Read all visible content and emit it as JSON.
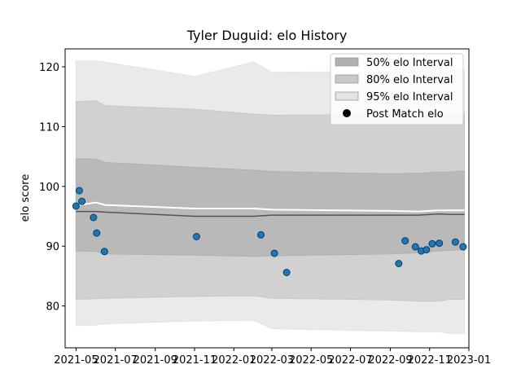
{
  "chart_data": {
    "type": "scatter",
    "title": "Tyler Duguid: elo History",
    "xlabel": "",
    "ylabel": "elo score",
    "x_ticks": [
      "2021-05",
      "2021-07",
      "2021-09",
      "2021-11",
      "2022-01",
      "2022-03",
      "2022-05",
      "2022-07",
      "2022-09",
      "2022-11",
      "2023-01"
    ],
    "y_ticks": [
      80,
      90,
      100,
      110,
      120
    ],
    "xlim": [
      "2021-04-14",
      "2023-01-01"
    ],
    "ylim": [
      73,
      123
    ],
    "grid": false,
    "legend_position": "top-right",
    "legend": [
      {
        "label": "50% elo Interval",
        "kind": "band",
        "color": "#b0b0b0"
      },
      {
        "label": "80% elo Interval",
        "kind": "band",
        "color": "#c8c8c8"
      },
      {
        "label": "95% elo Interval",
        "kind": "band",
        "color": "#e3e3e3"
      },
      {
        "label": "Post Match elo",
        "kind": "marker",
        "color": "#000000"
      }
    ],
    "colors": {
      "band50": "#b0b0b0",
      "band80": "#c8c8c8",
      "band95": "#e3e3e3",
      "median": "#555555",
      "mean": "#ffffff",
      "point": "#1f77b4",
      "point_edge": "#0b3d66"
    },
    "bands": {
      "dates": [
        "2021-05-01",
        "2021-06-01",
        "2021-06-15",
        "2021-11-01",
        "2022-02-01",
        "2022-03-01",
        "2022-09-01",
        "2022-10-15",
        "2022-11-15",
        "2022-12-01",
        "2022-12-25"
      ],
      "p95_upper": [
        121.0,
        121.0,
        120.8,
        118.4,
        120.8,
        119.1,
        119.2,
        119.2,
        119.3,
        119.4,
        119.4
      ],
      "p95_lower": [
        76.7,
        76.8,
        77.0,
        77.5,
        77.6,
        76.2,
        75.8,
        75.7,
        75.7,
        75.4,
        75.4
      ],
      "p80_upper": [
        114.2,
        114.3,
        113.5,
        112.9,
        112.1,
        111.9,
        112.0,
        112.0,
        112.2,
        112.2,
        112.2
      ],
      "p80_lower": [
        81.1,
        81.2,
        81.3,
        81.6,
        81.7,
        81.3,
        81.0,
        80.8,
        80.8,
        81.1,
        81.1
      ],
      "p50_upper": [
        104.6,
        104.6,
        104.0,
        103.2,
        102.7,
        102.5,
        102.1,
        102.2,
        102.4,
        102.4,
        102.6
      ],
      "p50_lower": [
        89.2,
        89.1,
        88.7,
        88.5,
        88.3,
        88.4,
        88.7,
        88.9,
        89.2,
        89.3,
        89.4
      ],
      "median": [
        95.8,
        95.8,
        95.7,
        95.0,
        95.0,
        95.2,
        95.2,
        95.2,
        95.4,
        95.3,
        95.3
      ],
      "mean": [
        96.8,
        97.3,
        96.9,
        96.3,
        96.3,
        96.1,
        95.9,
        95.8,
        96.0,
        96.0,
        96.0
      ]
    },
    "series": [
      {
        "name": "Post Match elo",
        "x": [
          "2021-05-01",
          "2021-05-06",
          "2021-05-10",
          "2021-05-28",
          "2021-06-02",
          "2021-06-14",
          "2021-11-04",
          "2022-02-12",
          "2022-03-05",
          "2022-03-24",
          "2022-09-14",
          "2022-09-24",
          "2022-10-10",
          "2022-10-19",
          "2022-10-27",
          "2022-11-05",
          "2022-11-16",
          "2022-12-11",
          "2022-12-23"
        ],
        "y": [
          96.7,
          99.3,
          97.5,
          94.8,
          92.2,
          89.1,
          91.6,
          91.9,
          88.8,
          85.6,
          87.1,
          90.9,
          89.9,
          89.2,
          89.4,
          90.4,
          90.5,
          90.7,
          89.9
        ]
      }
    ]
  }
}
